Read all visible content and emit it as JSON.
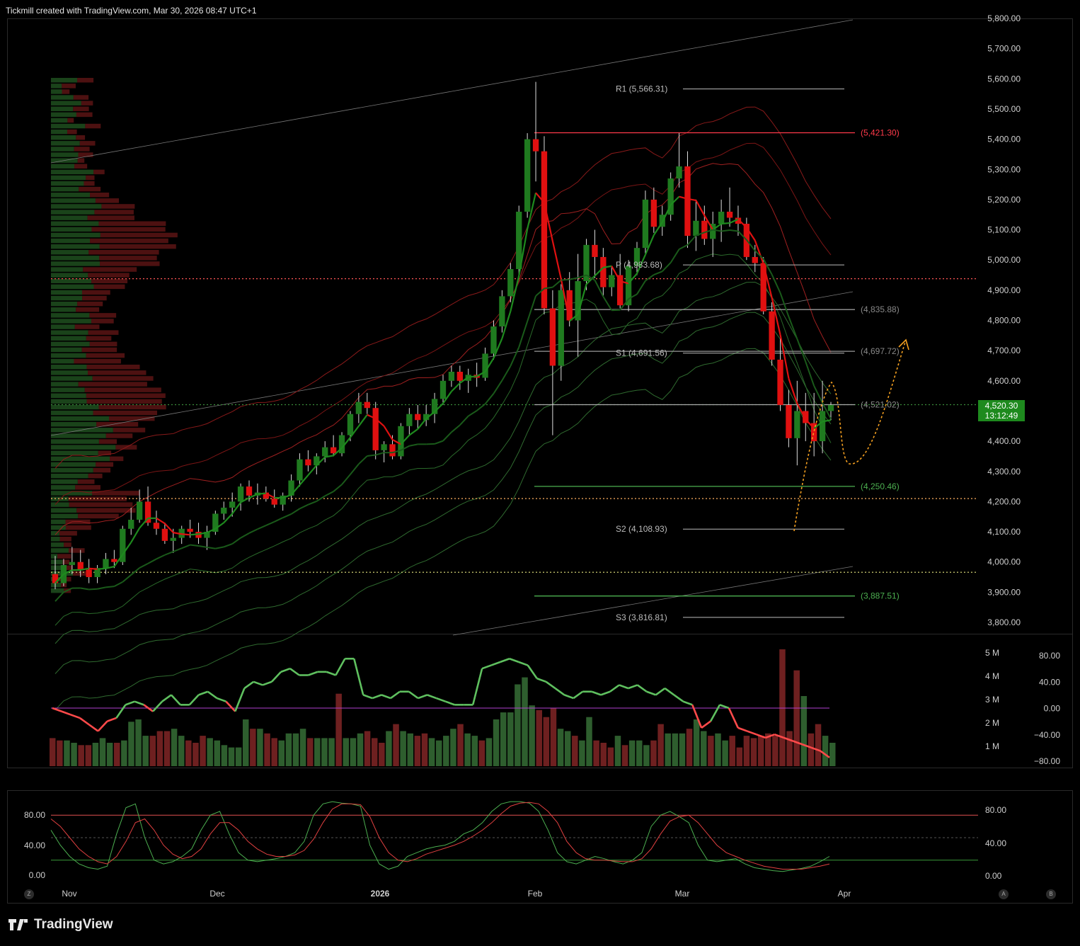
{
  "header": {
    "text": "Tickmill created with TradingView.com, Mar 30, 2026 08:47 UTC+1"
  },
  "brand": {
    "name": "TradingView"
  },
  "price_axis": {
    "labels": [
      "5,800.00",
      "5,700.00",
      "5,600.00",
      "5,500.00",
      "5,400.00",
      "5,300.00",
      "5,200.00",
      "5,100.00",
      "5,000.00",
      "4,900.00",
      "4,800.00",
      "4,700.00",
      "4,600.00",
      "4,400.00",
      "4,300.00",
      "4,200.00",
      "4,100.00",
      "4,000.00",
      "3,900.00",
      "3,800.00"
    ]
  },
  "last_price": {
    "value": "4,520.30",
    "countdown": "13:12:49"
  },
  "levels": {
    "r1": "R1 (5,566.31)",
    "p": "P (4,983.68)",
    "s1": "S1 (4,691.56)",
    "s2": "S2 (4,108.93)",
    "s3": "S3 (3,816.81)",
    "red_5421": "(5,421.30)",
    "grey_4835": "(4,835.88)",
    "grey_4697": "(4,697.72)",
    "grey_4521": "(4,521.02)",
    "green_4250": "(4,250.46)",
    "green_3887": "(3,887.51)"
  },
  "time_axis": {
    "labels": [
      "Nov",
      "Dec",
      "2026",
      "Feb",
      "Mar",
      "Apr"
    ]
  },
  "volume_axis": {
    "labels": [
      "5 M",
      "4 M",
      "3 M",
      "2 M",
      "1 M"
    ]
  },
  "osc_axis": {
    "labels": [
      "80.00",
      "40.00",
      "0.00",
      "−40.00",
      "−80.00"
    ]
  },
  "stoch_axis": {
    "labels": [
      "80.00",
      "40.00",
      "0.00"
    ]
  },
  "buttons": {
    "z": "Z",
    "a": "A",
    "b": "B"
  },
  "colors": {
    "up": "#1f7a1f",
    "down": "#e01010",
    "bg": "#000000",
    "accent": "#1e8a1e"
  },
  "chart_data": {
    "type": "candlestick",
    "title": "",
    "ylim": [
      3780,
      5820
    ],
    "candles": [
      [
        3960,
        4020,
        3910,
        3930
      ],
      [
        3930,
        4010,
        3920,
        3990
      ],
      [
        3990,
        4050,
        3960,
        4000
      ],
      [
        4000,
        4040,
        3950,
        3975
      ],
      [
        3975,
        4010,
        3930,
        3950
      ],
      [
        3950,
        3990,
        3930,
        3980
      ],
      [
        3980,
        4030,
        3960,
        4010
      ],
      [
        4010,
        4040,
        3980,
        4000
      ],
      [
        4000,
        4120,
        3990,
        4110
      ],
      [
        4110,
        4180,
        4090,
        4140
      ],
      [
        4140,
        4240,
        4130,
        4200
      ],
      [
        4200,
        4250,
        4120,
        4130
      ],
      [
        4130,
        4170,
        4090,
        4110
      ],
      [
        4110,
        4130,
        4060,
        4070
      ],
      [
        4070,
        4110,
        4030,
        4080
      ],
      [
        4080,
        4120,
        4060,
        4110
      ],
      [
        4110,
        4140,
        4080,
        4100
      ],
      [
        4100,
        4130,
        4060,
        4080
      ],
      [
        4080,
        4120,
        4040,
        4100
      ],
      [
        4100,
        4170,
        4090,
        4160
      ],
      [
        4160,
        4200,
        4140,
        4180
      ],
      [
        4180,
        4230,
        4150,
        4200
      ],
      [
        4200,
        4260,
        4170,
        4250
      ],
      [
        4250,
        4270,
        4200,
        4220
      ],
      [
        4220,
        4260,
        4190,
        4230
      ],
      [
        4230,
        4250,
        4200,
        4210
      ],
      [
        4210,
        4240,
        4180,
        4190
      ],
      [
        4190,
        4230,
        4170,
        4220
      ],
      [
        4220,
        4290,
        4200,
        4270
      ],
      [
        4270,
        4360,
        4250,
        4340
      ],
      [
        4340,
        4370,
        4300,
        4320
      ],
      [
        4320,
        4360,
        4290,
        4350
      ],
      [
        4350,
        4400,
        4330,
        4380
      ],
      [
        4380,
        4420,
        4350,
        4360
      ],
      [
        4360,
        4430,
        4350,
        4420
      ],
      [
        4420,
        4500,
        4400,
        4490
      ],
      [
        4490,
        4560,
        4460,
        4530
      ],
      [
        4530,
        4560,
        4490,
        4510
      ],
      [
        4510,
        4530,
        4340,
        4370
      ],
      [
        4370,
        4400,
        4330,
        4390
      ],
      [
        4390,
        4420,
        4340,
        4350
      ],
      [
        4350,
        4460,
        4340,
        4450
      ],
      [
        4450,
        4510,
        4420,
        4490
      ],
      [
        4490,
        4520,
        4440,
        4470
      ],
      [
        4470,
        4520,
        4450,
        4490
      ],
      [
        4490,
        4560,
        4460,
        4540
      ],
      [
        4540,
        4620,
        4520,
        4600
      ],
      [
        4600,
        4650,
        4580,
        4630
      ],
      [
        4630,
        4650,
        4570,
        4600
      ],
      [
        4600,
        4640,
        4560,
        4620
      ],
      [
        4620,
        4660,
        4580,
        4610
      ],
      [
        4610,
        4710,
        4600,
        4690
      ],
      [
        4690,
        4800,
        4670,
        4780
      ],
      [
        4780,
        4900,
        4760,
        4880
      ],
      [
        4880,
        4990,
        4860,
        4970
      ],
      [
        4970,
        5180,
        4950,
        5160
      ],
      [
        5160,
        5420,
        5140,
        5400
      ],
      [
        5400,
        5590,
        5260,
        5360
      ],
      [
        5360,
        5410,
        4820,
        4840
      ],
      [
        4840,
        4900,
        4420,
        4650
      ],
      [
        4650,
        4920,
        4600,
        4900
      ],
      [
        4900,
        4960,
        4780,
        4800
      ],
      [
        4800,
        5020,
        4680,
        4930
      ],
      [
        4930,
        5070,
        4900,
        5050
      ],
      [
        5050,
        5100,
        4940,
        5010
      ],
      [
        5010,
        5040,
        4880,
        4910
      ],
      [
        4910,
        4980,
        4880,
        4950
      ],
      [
        4950,
        5020,
        4840,
        4850
      ],
      [
        4850,
        5000,
        4830,
        4980
      ],
      [
        4980,
        5060,
        4950,
        5040
      ],
      [
        5040,
        5230,
        5020,
        5200
      ],
      [
        5200,
        5240,
        5090,
        5110
      ],
      [
        5110,
        5180,
        5080,
        5150
      ],
      [
        5150,
        5290,
        5130,
        5270
      ],
      [
        5270,
        5420,
        5240,
        5310
      ],
      [
        5310,
        5360,
        5040,
        5080
      ],
      [
        5080,
        5200,
        5030,
        5130
      ],
      [
        5130,
        5180,
        5050,
        5070
      ],
      [
        5070,
        5160,
        5010,
        5120
      ],
      [
        5120,
        5200,
        5060,
        5160
      ],
      [
        5160,
        5240,
        5110,
        5140
      ],
      [
        5140,
        5180,
        5080,
        5120
      ],
      [
        5120,
        5140,
        5000,
        5010
      ],
      [
        5010,
        5050,
        4960,
        4990
      ],
      [
        4990,
        5010,
        4820,
        4830
      ],
      [
        4830,
        4860,
        4650,
        4670
      ],
      [
        4670,
        4740,
        4500,
        4520
      ],
      [
        4520,
        4570,
        4380,
        4410
      ],
      [
        4410,
        4600,
        4320,
        4500
      ],
      [
        4500,
        4560,
        4400,
        4460
      ],
      [
        4460,
        4560,
        4350,
        4400
      ],
      [
        4400,
        4600,
        4360,
        4500
      ],
      [
        4500,
        4530,
        4470,
        4520
      ]
    ],
    "volume_m": [
      1.2,
      1.1,
      1.1,
      1.0,
      0.9,
      0.9,
      1.0,
      1.2,
      1.0,
      1.0,
      1.1,
      1.9,
      2.0,
      1.3,
      1.3,
      1.5,
      1.5,
      1.6,
      1.3,
      1.1,
      1.0,
      1.3,
      1.2,
      1.1,
      0.9,
      0.8,
      0.8,
      2.0,
      1.6,
      1.6,
      1.4,
      1.2,
      1.1,
      1.4,
      1.4,
      1.6,
      1.2,
      1.2,
      1.2,
      1.2,
      3.1,
      1.2,
      1.2,
      1.4,
      1.5,
      1.2,
      1.0,
      1.5,
      1.8,
      1.5,
      1.4,
      1.3,
      1.4,
      1.2,
      1.1,
      1.3,
      1.6,
      1.8,
      1.4,
      1.3,
      1.1,
      1.2,
      2.0,
      2.3,
      2.3,
      3.5,
      3.8,
      2.6,
      2.4,
      2.1,
      2.5,
      1.6,
      1.5,
      1.3,
      1.1,
      2.1,
      1.1,
      1.0,
      0.8,
      1.3,
      0.9,
      1.1,
      1.1,
      0.9,
      1.1,
      1.8,
      1.4,
      1.4,
      1.4,
      1.6,
      2.0,
      1.5,
      1.3,
      1.4,
      1.1,
      1.3,
      0.8,
      1.3,
      1.2,
      1.3,
      1.4,
      1.3,
      5.0,
      1.5,
      4.1,
      3.0,
      1.4,
      1.8,
      1.3,
      1.0
    ],
    "oscillator": [
      0,
      -5,
      -10,
      -15,
      -25,
      -35,
      -20,
      -15,
      5,
      10,
      5,
      -5,
      10,
      20,
      5,
      5,
      20,
      25,
      15,
      10,
      -5,
      30,
      40,
      35,
      40,
      55,
      60,
      50,
      50,
      55,
      55,
      50,
      75,
      75,
      20,
      15,
      20,
      15,
      25,
      25,
      15,
      20,
      15,
      10,
      5,
      5,
      5,
      60,
      65,
      70,
      75,
      70,
      65,
      45,
      40,
      30,
      20,
      15,
      25,
      25,
      20,
      25,
      35,
      30,
      35,
      25,
      20,
      30,
      20,
      10,
      5,
      -30,
      -20,
      5,
      0,
      -30,
      -35,
      -40,
      -45,
      -40,
      -45,
      -50,
      -55,
      -60,
      -65,
      -75
    ],
    "stochastic_k": [
      60,
      40,
      25,
      15,
      10,
      8,
      12,
      55,
      90,
      95,
      50,
      20,
      15,
      18,
      25,
      35,
      60,
      80,
      85,
      55,
      30,
      20,
      18,
      20,
      22,
      25,
      30,
      45,
      80,
      95,
      98,
      96,
      95,
      92,
      40,
      15,
      8,
      12,
      25,
      30,
      35,
      38,
      40,
      45,
      55,
      60,
      70,
      85,
      95,
      98,
      98,
      96,
      85,
      60,
      30,
      18,
      15,
      20,
      25,
      22,
      18,
      15,
      20,
      30,
      65,
      80,
      85,
      78,
      70,
      40,
      20,
      18,
      20,
      22,
      15,
      10,
      8,
      6,
      5,
      7,
      9,
      12,
      18,
      25
    ],
    "stochastic_d": [
      75,
      65,
      50,
      35,
      25,
      18,
      15,
      25,
      45,
      70,
      75,
      60,
      40,
      28,
      22,
      25,
      35,
      55,
      70,
      70,
      60,
      45,
      35,
      28,
      25,
      25,
      27,
      33,
      48,
      70,
      88,
      95,
      95,
      94,
      78,
      50,
      30,
      20,
      18,
      22,
      28,
      32,
      36,
      40,
      45,
      52,
      60,
      70,
      82,
      92,
      96,
      97,
      95,
      85,
      70,
      45,
      30,
      22,
      20,
      20,
      19,
      18,
      18,
      22,
      35,
      55,
      72,
      78,
      80,
      70,
      55,
      40,
      30,
      25,
      20,
      16,
      12,
      10,
      8,
      8,
      8,
      10,
      12,
      15
    ]
  }
}
